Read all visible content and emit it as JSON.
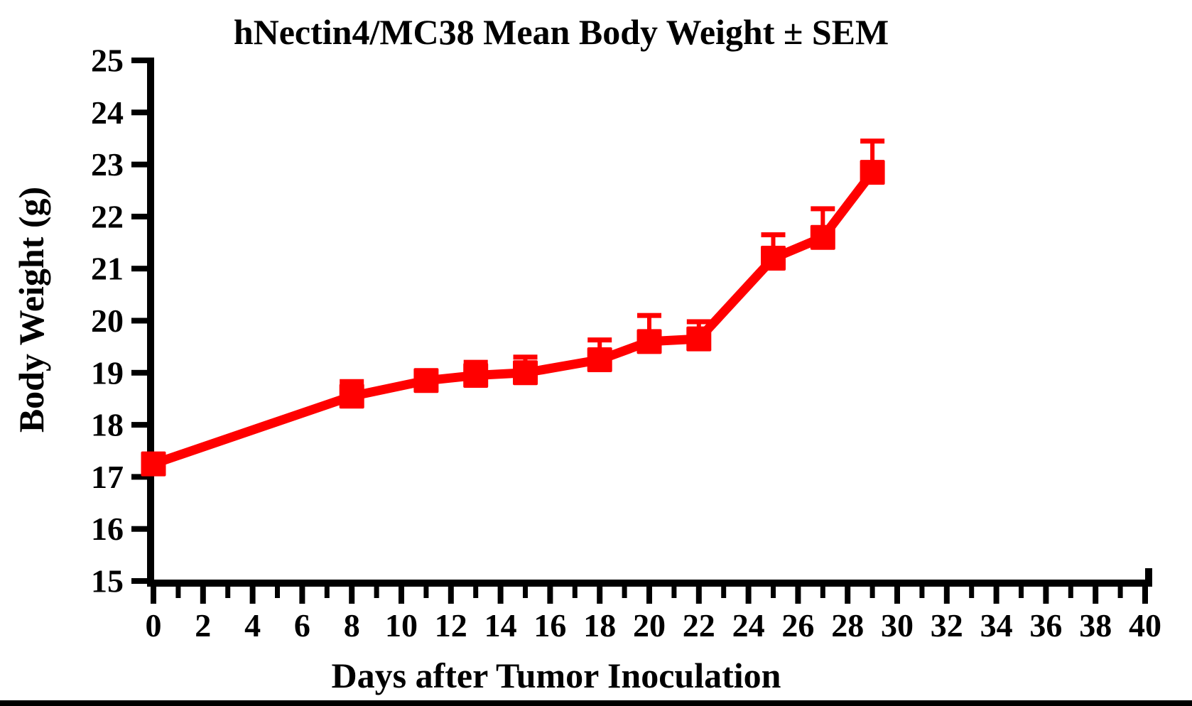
{
  "chart_data": {
    "type": "line",
    "title": "hNectin4/MC38 Mean Body Weight ± SEM",
    "xlabel": "Days after Tumor Inoculation",
    "ylabel": "Body Weight (g)",
    "xlim": [
      0,
      40
    ],
    "ylim": [
      15,
      25
    ],
    "x_major_tick_step": 2,
    "x_minor_tick_step": 1,
    "y_tick_step": 1,
    "x_tick_labels": [
      "0",
      "2",
      "4",
      "6",
      "8",
      "10",
      "12",
      "14",
      "16",
      "18",
      "20",
      "22",
      "24",
      "26",
      "28",
      "30",
      "32",
      "34",
      "36",
      "38",
      "40"
    ],
    "y_tick_labels": [
      "15",
      "16",
      "17",
      "18",
      "19",
      "20",
      "21",
      "22",
      "23",
      "24",
      "25"
    ],
    "grid": false,
    "legend": null,
    "background_color": "#ffffff",
    "axis_color": "#000000",
    "series": [
      {
        "name": "hNectin4/MC38 mean body weight",
        "color": "#ff0000",
        "marker": "square",
        "error_direction": "up",
        "x": [
          0,
          8,
          11,
          13,
          15,
          18,
          20,
          22,
          25,
          27,
          29
        ],
        "y": [
          17.25,
          18.55,
          18.85,
          18.95,
          19.0,
          19.25,
          19.6,
          19.65,
          21.2,
          21.6,
          22.85
        ],
        "sem": [
          0.15,
          0.28,
          0.18,
          0.25,
          0.3,
          0.38,
          0.5,
          0.33,
          0.45,
          0.55,
          0.6
        ]
      }
    ]
  }
}
